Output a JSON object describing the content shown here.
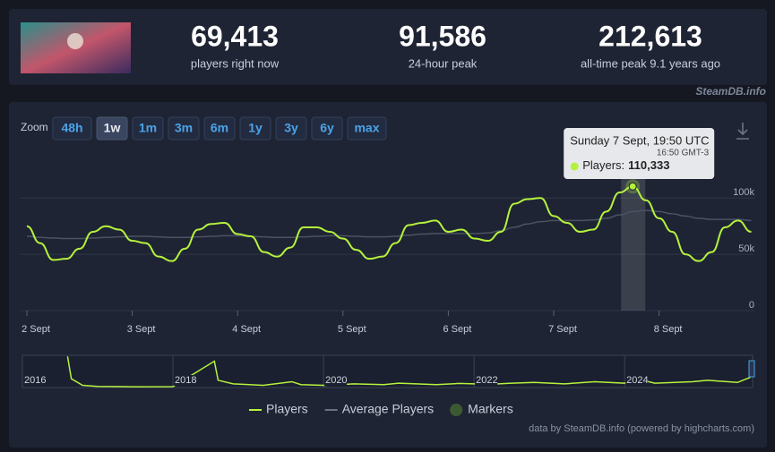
{
  "header": {
    "stats": [
      {
        "value": "69,413",
        "label": "players right now"
      },
      {
        "value": "91,586",
        "label": "24-hour peak"
      },
      {
        "value": "212,613",
        "label": "all-time peak 9.1 years ago"
      }
    ]
  },
  "watermark": "SteamDB.info",
  "zoom": {
    "label": "Zoom",
    "options": [
      "48h",
      "1w",
      "1m",
      "3m",
      "6m",
      "1y",
      "3y",
      "6y",
      "max"
    ],
    "active": 1
  },
  "chart_data": [
    {
      "type": "line",
      "categories": [
        "2 Sept",
        null,
        null,
        null,
        null,
        null,
        null,
        null,
        "3 Sept",
        null,
        null,
        null,
        null,
        null,
        null,
        null,
        "4 Sept",
        null,
        null,
        null,
        null,
        null,
        null,
        null,
        "5 Sept",
        null,
        null,
        null,
        null,
        null,
        null,
        null,
        "6 Sept",
        null,
        null,
        null,
        null,
        null,
        null,
        null,
        "7 Sept",
        null,
        null,
        null,
        null,
        null,
        null,
        null,
        "8 Sept",
        null,
        null,
        null,
        null,
        null,
        null,
        null
      ],
      "series": [
        {
          "name": "Players",
          "color": "#b5f23d",
          "values": [
            75000,
            60000,
            45000,
            46000,
            55000,
            70000,
            75000,
            72000,
            62000,
            60000,
            48000,
            44000,
            55000,
            72000,
            77000,
            78000,
            68000,
            66000,
            52000,
            48000,
            56000,
            74000,
            74000,
            70000,
            64000,
            54000,
            46000,
            48000,
            60000,
            76000,
            78000,
            80000,
            70000,
            72000,
            64000,
            62000,
            70000,
            95000,
            99000,
            100000,
            84000,
            78000,
            70000,
            72000,
            88000,
            105000,
            110333,
            98000,
            82000,
            70000,
            50000,
            44000,
            52000,
            74000,
            80000,
            70000
          ]
        },
        {
          "name": "Average Players",
          "color": "#4b5263",
          "values": [
            66000,
            65000,
            64500,
            64000,
            64000,
            64500,
            65000,
            65500,
            66000,
            66000,
            65500,
            65000,
            65000,
            65500,
            66000,
            66500,
            66500,
            66000,
            65500,
            65000,
            65000,
            65500,
            66000,
            66500,
            66500,
            66000,
            65500,
            65500,
            66000,
            67000,
            68000,
            68500,
            68500,
            68500,
            68500,
            69000,
            71000,
            74000,
            77000,
            79000,
            80000,
            80000,
            80000,
            80500,
            82000,
            85000,
            88000,
            89000,
            88000,
            86000,
            84000,
            82000,
            81000,
            81000,
            81000,
            80000
          ]
        }
      ],
      "markers": {
        "name": "Markers",
        "color": "#3b5a32"
      },
      "ylim": [
        0,
        140000
      ],
      "yticks": [
        0,
        {
          "value": 50000,
          "label": "50k"
        },
        {
          "value": 100000,
          "label": "100k"
        }
      ],
      "grid": true,
      "tooltip": {
        "title": "Sunday 7 Sept, 19:50 UTC",
        "subtitle": "16:50 GMT-3",
        "series_label": "Players:",
        "value": 110333,
        "value_label": "110,333"
      }
    },
    {
      "type": "line",
      "x": [
        2016.6,
        2016.65,
        2016.8,
        2017.0,
        2017.5,
        2018.0,
        2018.55,
        2018.6,
        2018.8,
        2019.2,
        2019.58,
        2019.7,
        2020.0,
        2020.4,
        2020.8,
        2021.0,
        2021.5,
        2021.8,
        2022.2,
        2022.5,
        2022.8,
        2023.2,
        2023.6,
        2024.0,
        2024.2,
        2024.4,
        2024.9,
        2025.1,
        2025.5,
        2025.67
      ],
      "values": [
        212613,
        60000,
        15000,
        8000,
        5000,
        6000,
        180000,
        50000,
        25000,
        15000,
        40000,
        20000,
        15000,
        25000,
        20000,
        30000,
        20000,
        28000,
        22000,
        30000,
        35000,
        25000,
        40000,
        30000,
        55000,
        30000,
        40000,
        50000,
        35000,
        70000
      ],
      "color": "#b5f23d",
      "xlim": [
        2016,
        2025.7
      ],
      "xticks": [
        2016,
        2018,
        2020,
        2022,
        2024
      ],
      "ylim": [
        0,
        220000
      ]
    }
  ],
  "credit": "data by SteamDB.info (powered by highcharts.com)"
}
